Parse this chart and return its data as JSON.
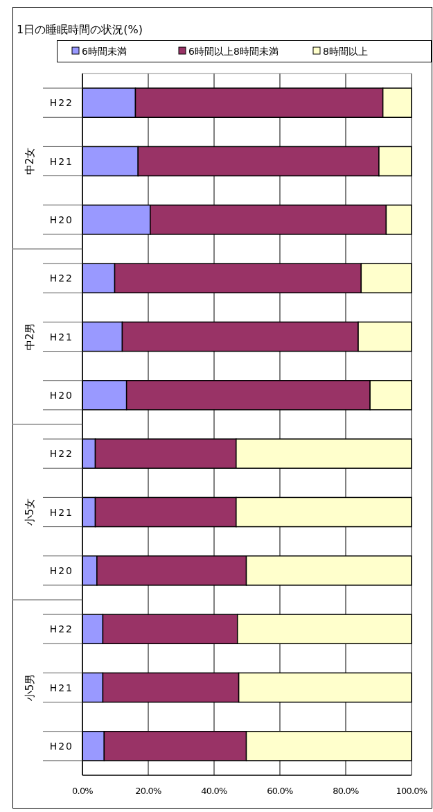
{
  "chart_data": {
    "type": "bar",
    "orientation": "horizontal",
    "stacked": true,
    "title": "1日の睡眠時間の状況(%)",
    "categories": [
      "H22",
      "H21",
      "H20",
      "H22",
      "H21",
      "H20",
      "H22",
      "H21",
      "H20",
      "H22",
      "H21",
      "H20"
    ],
    "annotations": [
      "中2女",
      "中2男",
      "小5女",
      "小5男"
    ],
    "series": [
      {
        "name": "6時間未満",
        "color": "#9999ff",
        "values": [
          16.1,
          16.9,
          20.6,
          9.8,
          12.1,
          13.4,
          3.9,
          3.9,
          4.4,
          6.2,
          6.2,
          6.6
        ]
      },
      {
        "name": "6時間以上8時間未満",
        "color": "#993366",
        "values": [
          75.2,
          73.2,
          71.7,
          74.9,
          71.7,
          74.0,
          42.8,
          42.8,
          45.4,
          40.9,
          41.3,
          43.2
        ]
      },
      {
        "name": "8時間以上",
        "color": "#ffffcc",
        "values": [
          8.7,
          9.9,
          7.7,
          15.3,
          16.2,
          12.6,
          53.3,
          53.3,
          50.2,
          52.9,
          52.5,
          50.2
        ]
      }
    ],
    "xlim": [
      0,
      100
    ],
    "xticks": [
      {
        "value": 0,
        "label": "0.0%"
      },
      {
        "value": 20,
        "label": "20.0%"
      },
      {
        "value": 40,
        "label": "40.0%"
      },
      {
        "value": 60,
        "label": "60.0%"
      },
      {
        "value": 80,
        "label": "80.0%"
      },
      {
        "value": 100,
        "label": "100.0%"
      }
    ],
    "grid": "x",
    "legend": "top"
  }
}
